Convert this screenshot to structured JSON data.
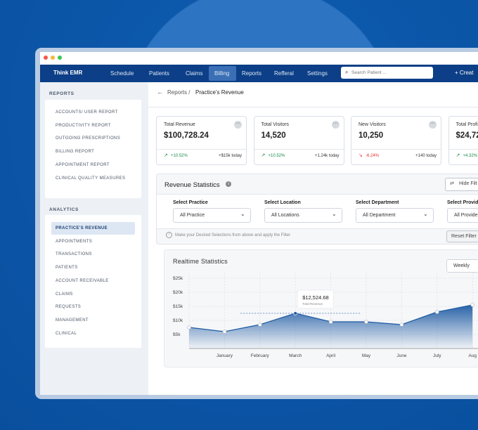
{
  "nav": {
    "brand": "Think EMR",
    "items": [
      "Schedule",
      "Patients",
      "Claims",
      "Billing",
      "Reports",
      "Refferal",
      "Settings"
    ],
    "search": "Search Patient ...",
    "create": "+ Creat"
  },
  "sidebar": {
    "reports_heading": "REPORTS",
    "reports": [
      "ACCOUNTS/ USER REPORT",
      "PRODUCTIVITY REPORT",
      "OUTGOING PRESCRIPTIONS",
      "BILLING REPORT",
      "APPOINTMENT REPORT",
      "CLINICAL QUALITY MEASURES"
    ],
    "analytics_heading": "ANALYTICS",
    "analytics": [
      "PRACTICE'S REVENUE",
      "APPOINTMENTS",
      "TRANSACTIONS",
      "PATIENTS",
      "ACCOUNT RECEIVABLE",
      "CLAIMS",
      "REQUESTS",
      "MANAGEMENT",
      "CLINICAL"
    ]
  },
  "breadcrumb": {
    "parent": "Reports /",
    "current": "Practice’s Revenue"
  },
  "cards": [
    {
      "title": "Total Revenue",
      "value": "$100,728.24",
      "change": "+10.52%",
      "note": "+$15k today"
    },
    {
      "title": "Total Visitors",
      "value": "14,520",
      "change": "+10.52%",
      "note": "+1.24k today"
    },
    {
      "title": "New Visitors",
      "value": "10,250",
      "change": "-6.24%",
      "note": "+140 today"
    },
    {
      "title": "Total Profi",
      "value": "$24,72",
      "change": "+4.32%",
      "note": ""
    }
  ],
  "filters": {
    "title": "Revenue Statistics",
    "hide": "Hide Filt",
    "fields": [
      {
        "label": "Select Practice",
        "value": "All Practice"
      },
      {
        "label": "Select Location",
        "value": "All Locations"
      },
      {
        "label": "Select Department",
        "value": "All Department"
      },
      {
        "label": "Select Provide",
        "value": "All Provide"
      }
    ],
    "hint": "Make your Desired Selections from above and apply the Filter",
    "reset": "Reset Filter"
  },
  "chart_data": {
    "type": "area",
    "title": "Realtime Statistics",
    "period": "Weekly",
    "categories": [
      null,
      "January",
      "February",
      "March",
      "April",
      "May",
      "June",
      "July",
      "Aug"
    ],
    "values": [
      7500,
      6000,
      8500,
      12524.68,
      9500,
      9500,
      8500,
      13000,
      15500
    ],
    "value_labels": [
      null,
      null,
      null,
      "$12,524.68",
      null,
      null,
      null,
      null,
      null
    ],
    "tooltip_caption": "Total Revenue",
    "color": "#1d5aa3",
    "ylim": [
      0,
      27000
    ],
    "yticks": [
      {
        "value": 5000,
        "label": "$5k"
      },
      {
        "value": 10000,
        "label": "$10k"
      },
      {
        "value": 15000,
        "label": "$15k"
      },
      {
        "value": 20000,
        "label": "$20k"
      },
      {
        "value": 25000,
        "label": "$25k"
      }
    ],
    "grid": true
  }
}
